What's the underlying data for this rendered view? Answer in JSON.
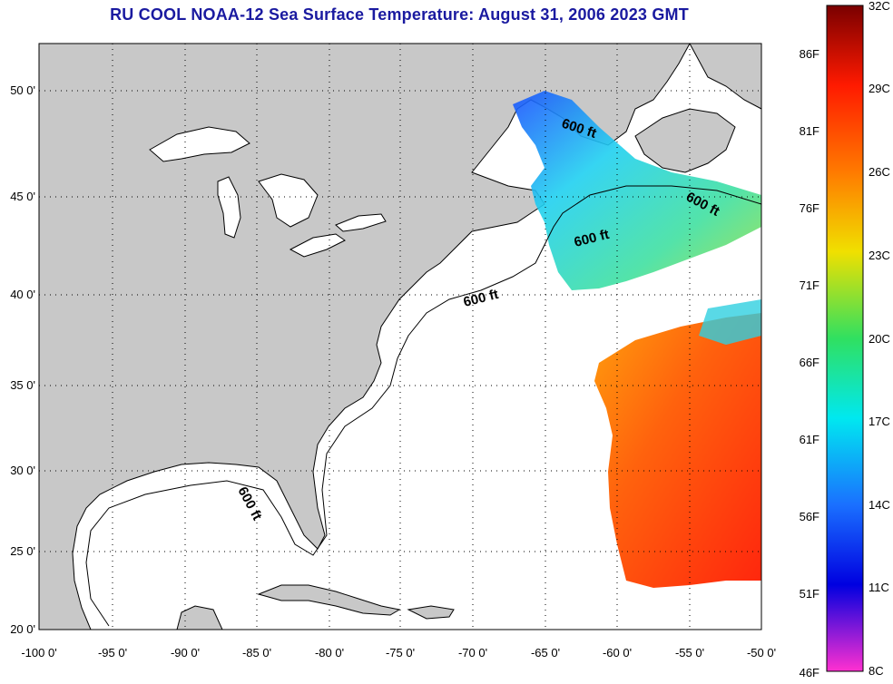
{
  "title": "RU COOL  NOAA-12  Sea Surface Temperature:  August 31, 2006 2023 GMT",
  "map": {
    "lon_ticks": [
      "-100 0'",
      "-95 0'",
      "-90 0'",
      "-85 0'",
      "-80 0'",
      "-75 0'",
      "-70 0'",
      "-65 0'",
      "-60 0'",
      "-55 0'",
      "-50 0'"
    ],
    "lat_ticks": [
      "50 0'",
      "45 0'",
      "40 0'",
      "35 0'",
      "30 0'",
      "25 0'",
      "20 0'"
    ],
    "contour_label": "600 ft",
    "land_color": "#c8c8c8",
    "ocean_color": "#ffffff"
  },
  "colorbar": {
    "fahrenheit": [
      "86F",
      "81F",
      "76F",
      "71F",
      "66F",
      "61F",
      "56F",
      "51F",
      "46F"
    ],
    "celsius": [
      "32C",
      "29C",
      "26C",
      "23C",
      "20C",
      "17C",
      "14C",
      "11C",
      "8C"
    ]
  }
}
